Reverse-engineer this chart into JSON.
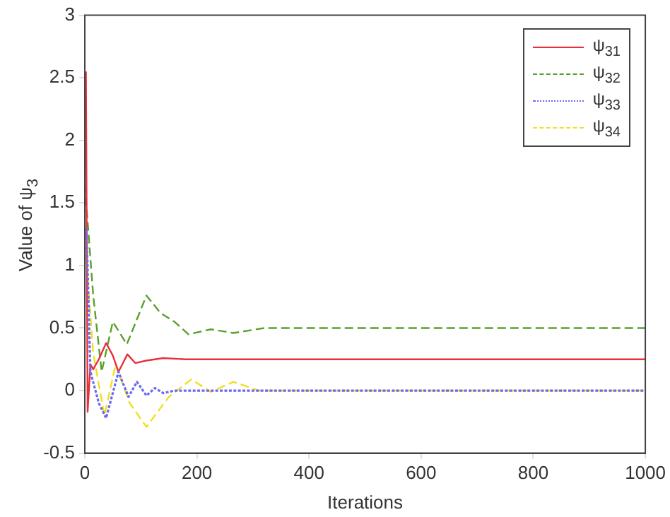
{
  "chart_data": {
    "type": "line",
    "xlabel": "Iterations",
    "ylabel": "Value of ψ$_{3}$",
    "xlim": [
      0,
      1000
    ],
    "ylim": [
      -0.5,
      3
    ],
    "xticks": [
      0,
      200,
      400,
      600,
      800,
      1000
    ],
    "yticks": [
      -0.5,
      0,
      0.5,
      1,
      1.5,
      2,
      2.5,
      3
    ],
    "grid": false,
    "legend": "top right",
    "marker": "none",
    "series": [
      {
        "name": "ψ$_{31}$",
        "color": "#e8303a",
        "line_style": "solid",
        "x": [
          2,
          5,
          10,
          15,
          25,
          38,
          50,
          60,
          76,
          90,
          110,
          140,
          180,
          300,
          1000
        ],
        "values": [
          2.55,
          -0.17,
          0.21,
          0.17,
          0.25,
          0.38,
          0.28,
          0.15,
          0.29,
          0.22,
          0.24,
          0.26,
          0.25,
          0.25,
          0.25
        ]
      },
      {
        "name": "ψ$_{32}$",
        "color": "#5aa02c",
        "line_style": "dashed",
        "x": [
          0,
          15,
          30,
          50,
          75,
          110,
          135,
          160,
          185,
          225,
          265,
          320,
          1000
        ],
        "values": [
          1.65,
          0.76,
          0.15,
          0.55,
          0.37,
          0.76,
          0.62,
          0.55,
          0.45,
          0.49,
          0.46,
          0.5,
          0.5
        ]
      },
      {
        "name": "ψ$_{33}$",
        "color": "#6a6af0",
        "line_style": "dotted",
        "x": [
          3,
          10,
          25,
          38,
          60,
          78,
          93,
          110,
          125,
          140,
          160,
          1000
        ],
        "values": [
          1.3,
          0.15,
          -0.1,
          -0.22,
          0.15,
          -0.05,
          0.07,
          -0.04,
          0.02,
          -0.02,
          0,
          0
        ]
      },
      {
        "name": "ψ$_{34}$",
        "color": "#f0e020",
        "line_style": "dashed",
        "x": [
          0,
          15,
          35,
          55,
          80,
          110,
          150,
          190,
          225,
          265,
          310,
          1000
        ],
        "values": [
          1.19,
          0.3,
          -0.2,
          0.21,
          -0.1,
          -0.29,
          -0.05,
          0.09,
          -0.01,
          0.07,
          0,
          0
        ]
      }
    ]
  }
}
